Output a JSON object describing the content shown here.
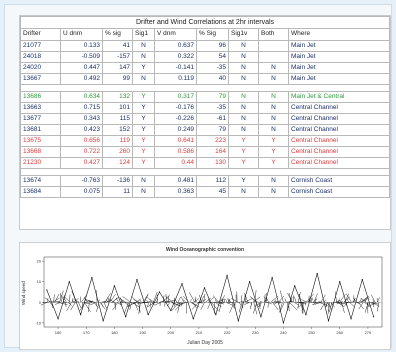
{
  "table": {
    "title": "Drifter and Wind Correlations at 2hr intervals",
    "headers": [
      "Drifter",
      "U dnm",
      "% sig",
      "Sig1",
      "V dnm",
      "% Sig",
      "Sig1v",
      "Both",
      "Where"
    ],
    "groups": [
      {
        "rows": [
          {
            "cells": [
              "21077",
              "0.133",
              "41",
              "N",
              "0.637",
              "96",
              "N",
              "",
              "Main Jet"
            ],
            "color": "#1c2f6b"
          },
          {
            "cells": [
              "24018",
              "-0.509",
              "-157",
              "N",
              "0.322",
              "54",
              "N",
              "",
              "Main Jet"
            ],
            "color": "#1c2f6b"
          },
          {
            "cells": [
              "24020",
              "0.447",
              "147",
              "Y",
              "-0.141",
              "-35",
              "N",
              "N",
              "Main Jet"
            ],
            "color": "#1c2f6b"
          },
          {
            "cells": [
              "13667",
              "0.492",
              "99",
              "N",
              "0.119",
              "40",
              "N",
              "N",
              "Main Jet"
            ],
            "color": "#1c2f6b"
          }
        ]
      },
      {
        "rows": [
          {
            "cells": [
              "13686",
              "0.634",
              "132",
              "Y",
              "0.317",
              "79",
              "N",
              "N",
              "Main Jet & Central"
            ],
            "color": "#2e9a3a"
          },
          {
            "cells": [
              "13663",
              "0.715",
              "101",
              "Y",
              "-0.176",
              "-35",
              "N",
              "N",
              "Central Channel"
            ],
            "color": "#1c2f6b"
          },
          {
            "cells": [
              "13677",
              "0.343",
              "115",
              "Y",
              "-0.226",
              "-61",
              "N",
              "N",
              "Central Channel"
            ],
            "color": "#1c2f6b"
          },
          {
            "cells": [
              "13681",
              "0.423",
              "152",
              "Y",
              "0.249",
              "79",
              "N",
              "N",
              "Central Channel"
            ],
            "color": "#1c2f6b"
          },
          {
            "cells": [
              "13675",
              "0.656",
              "119",
              "Y",
              "0.641",
              "223",
              "Y",
              "Y",
              "Central Channel"
            ],
            "color": "#e23a3a"
          },
          {
            "cells": [
              "13668",
              "0.722",
              "260",
              "Y",
              "0.586",
              "164",
              "Y",
              "Y",
              "Central Channel"
            ],
            "color": "#e23a3a"
          },
          {
            "cells": [
              "21230",
              "0.427",
              "124",
              "Y",
              "0.44",
              "130",
              "Y",
              "Y",
              "Central Channel"
            ],
            "color": "#e23a3a"
          }
        ]
      },
      {
        "rows": [
          {
            "cells": [
              "13674",
              "-0.763",
              "-136",
              "N",
              "0.481",
              "112",
              "Y",
              "N",
              "Cornish Coast"
            ],
            "color": "#1c2f6b"
          },
          {
            "cells": [
              "13684",
              "0.075",
              "11",
              "N",
              "0.363",
              "45",
              "N",
              "N",
              "Cornish Coast"
            ],
            "color": "#1c2f6b"
          }
        ]
      }
    ]
  },
  "chart": {
    "title": "Wind Oceanographic convention",
    "ylabel": "Wind speed",
    "xlabel": "Julian Day 2005",
    "line_color": "#111111",
    "ytick_labels": [
      "20",
      "10",
      "0",
      "-10"
    ],
    "xtick_labels": [
      "160",
      "170",
      "180",
      "190",
      "200",
      "210",
      "220",
      "230",
      "240",
      "250",
      "260",
      "270"
    ]
  },
  "chart_data": {
    "type": "line",
    "title": "Wind Oceanographic convention",
    "xlabel": "Julian Day 2005",
    "ylabel": "Wind speed",
    "xlim": [
      155,
      275
    ],
    "ylim": [
      -12,
      22
    ],
    "x": [
      156,
      160,
      164,
      168,
      172,
      176,
      180,
      184,
      188,
      192,
      196,
      200,
      204,
      208,
      212,
      216,
      220,
      224,
      228,
      232,
      236,
      240,
      244,
      248,
      252,
      256,
      260,
      264,
      268,
      272
    ],
    "series": [
      {
        "values": [
          6,
          -8,
          10,
          -6,
          12,
          -9,
          8,
          -7,
          11,
          -6,
          5,
          -4,
          9,
          -8,
          7,
          -6,
          13,
          -9,
          10,
          -7,
          12,
          -10,
          8,
          -6,
          14,
          -9,
          10,
          -8,
          11,
          -7
        ]
      }
    ]
  }
}
